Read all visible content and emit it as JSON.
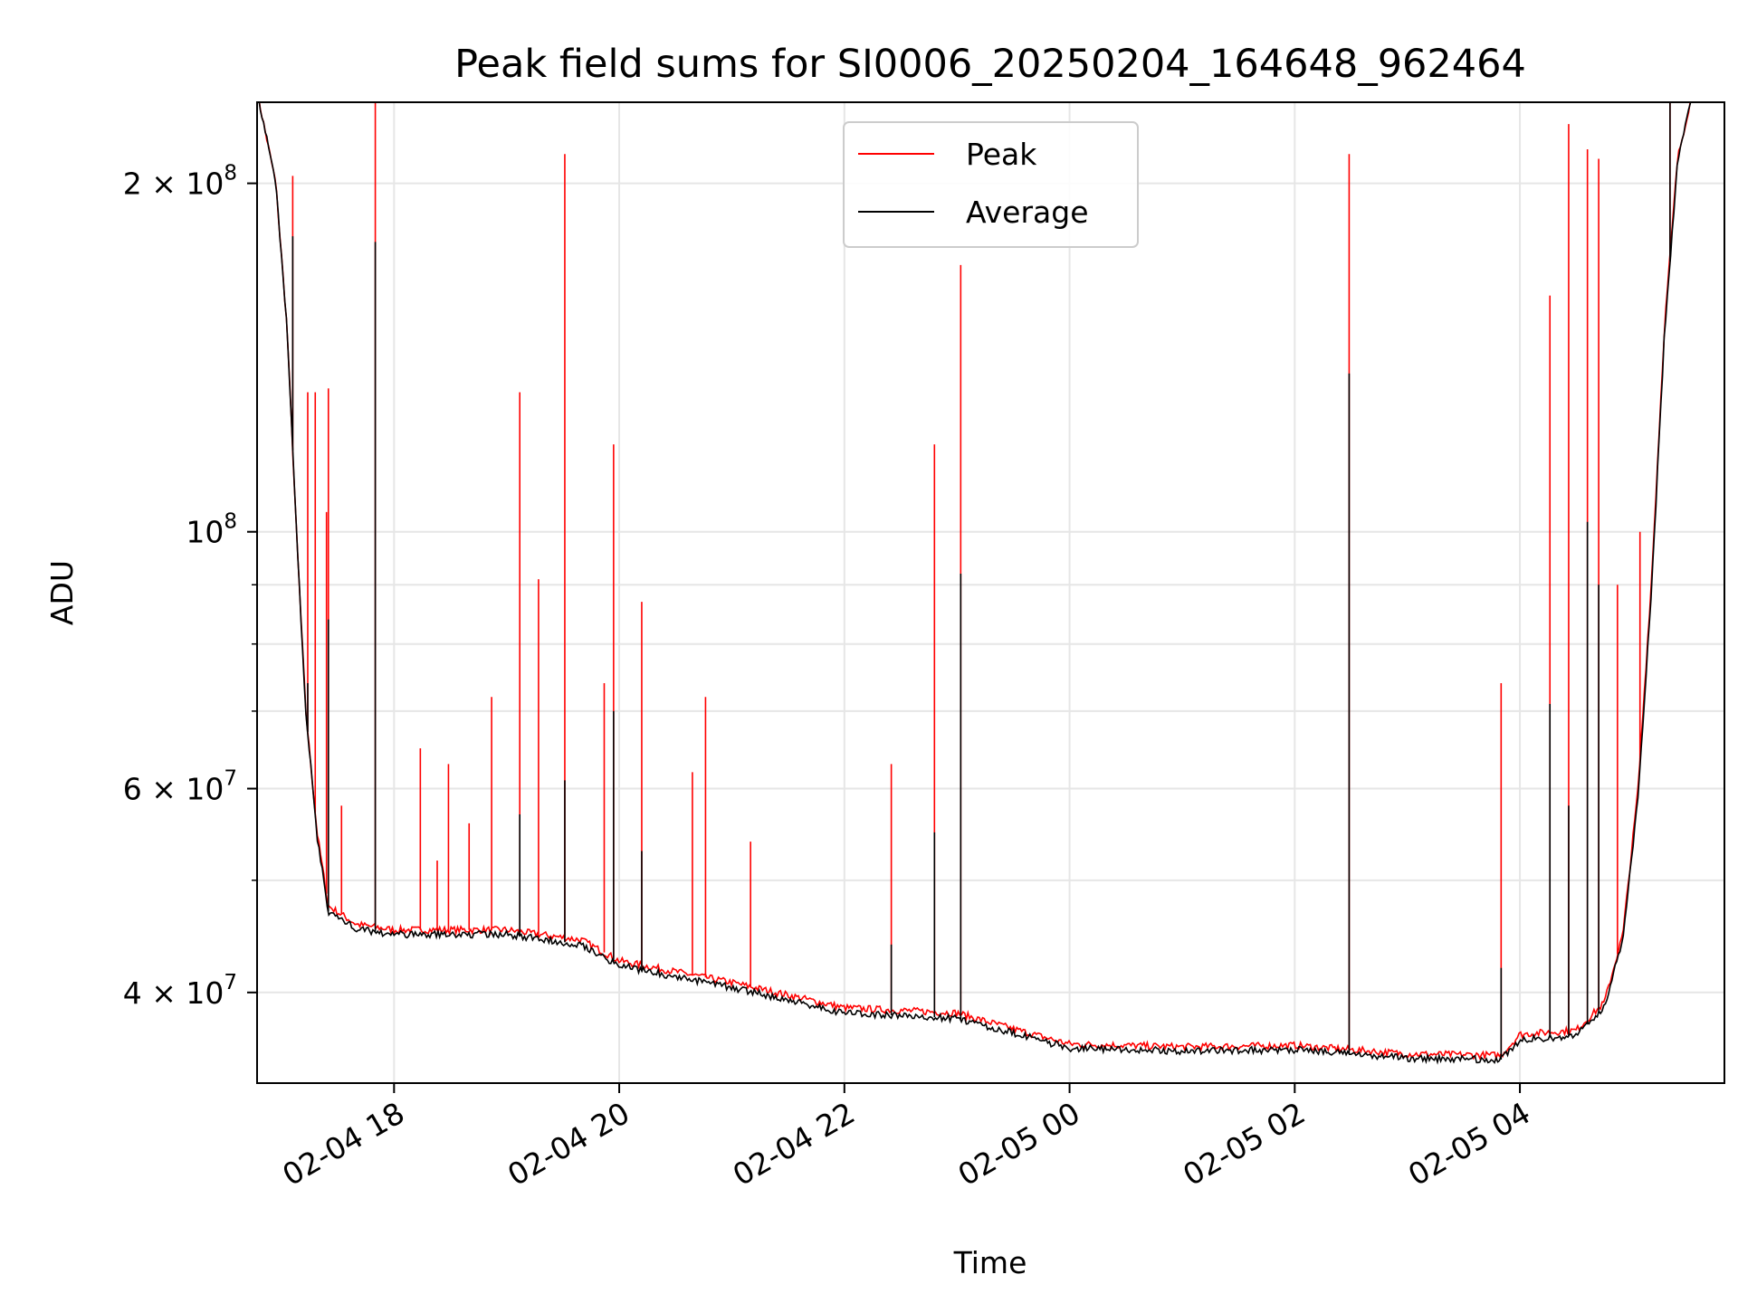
{
  "chart_data": {
    "type": "line",
    "title": "Peak field sums for SI0006_20250204_164648_962464",
    "xlabel": "Time",
    "ylabel": "ADU",
    "y_scale": "log",
    "ylim": [
      33400000,
      235000000
    ],
    "xlim": [
      "2025-02-04 16:47",
      "2025-02-05 05:49"
    ],
    "grid": true,
    "legend_position": "top-center",
    "x_ticks": [
      {
        "t": "2025-02-04 18:00",
        "label": "02-04 18"
      },
      {
        "t": "2025-02-04 20:00",
        "label": "02-04 20"
      },
      {
        "t": "2025-02-04 22:00",
        "label": "02-04 22"
      },
      {
        "t": "2025-02-05 00:00",
        "label": "02-05 00"
      },
      {
        "t": "2025-02-05 02:00",
        "label": "02-05 02"
      },
      {
        "t": "2025-02-05 04:00",
        "label": "02-05 04"
      }
    ],
    "y_ticks": [
      {
        "v": 40000000,
        "base": "4",
        "exp": "7"
      },
      {
        "v": 60000000,
        "base": "6",
        "exp": "7"
      },
      {
        "v": 100000000,
        "base": "",
        "exp": "8"
      },
      {
        "v": 200000000,
        "base": "2",
        "exp": "8"
      }
    ],
    "y_minor_ticks": [
      50000000,
      70000000,
      80000000,
      90000000
    ],
    "series": [
      {
        "name": "Peak",
        "color": "#ff0000",
        "baseline": [
          [
            "2025-02-04 16:47",
            240000000
          ],
          [
            "2025-02-04 16:57",
            200000000
          ],
          [
            "2025-02-04 17:03",
            150000000
          ],
          [
            "2025-02-04 17:08",
            100000000
          ],
          [
            "2025-02-04 17:13",
            70000000
          ],
          [
            "2025-02-04 17:19",
            55000000
          ],
          [
            "2025-02-04 17:25",
            47500000
          ],
          [
            "2025-02-04 17:40",
            45800000
          ],
          [
            "2025-02-04 18:00",
            45300000
          ],
          [
            "2025-02-04 19:00",
            45300000
          ],
          [
            "2025-02-04 19:40",
            44400000
          ],
          [
            "2025-02-04 20:00",
            42600000
          ],
          [
            "2025-02-04 21:00",
            40800000
          ],
          [
            "2025-02-04 22:00",
            38800000
          ],
          [
            "2025-02-04 23:00",
            38400000
          ],
          [
            "2025-02-04 23:30",
            37200000
          ],
          [
            "2025-02-05 00:00",
            36100000
          ],
          [
            "2025-02-05 01:00",
            35900000
          ],
          [
            "2025-02-05 02:00",
            36000000
          ],
          [
            "2025-02-05 03:00",
            35400000
          ],
          [
            "2025-02-05 03:50",
            35300000
          ],
          [
            "2025-02-05 04:00",
            36800000
          ],
          [
            "2025-02-05 04:30",
            37100000
          ],
          [
            "2025-02-05 04:45",
            39200000
          ],
          [
            "2025-02-05 04:55",
            45000000
          ],
          [
            "2025-02-05 05:03",
            60000000
          ],
          [
            "2025-02-05 05:10",
            90000000
          ],
          [
            "2025-02-05 05:17",
            150000000
          ],
          [
            "2025-02-05 05:24",
            210000000
          ],
          [
            "2025-02-05 05:32",
            240000000
          ],
          [
            "2025-02-05 05:49",
            240000000
          ]
        ],
        "spikes": [
          [
            "2025-02-04 17:06",
            203000000
          ],
          [
            "2025-02-04 17:14",
            132000000
          ],
          [
            "2025-02-04 17:18",
            132000000
          ],
          [
            "2025-02-04 17:24",
            104000000
          ],
          [
            "2025-02-04 17:25",
            133000000
          ],
          [
            "2025-02-04 17:32",
            58000000
          ],
          [
            "2025-02-04 17:50",
            240000000
          ],
          [
            "2025-02-04 18:14",
            65000000
          ],
          [
            "2025-02-04 18:23",
            52000000
          ],
          [
            "2025-02-04 18:29",
            63000000
          ],
          [
            "2025-02-04 18:40",
            56000000
          ],
          [
            "2025-02-04 18:52",
            72000000
          ],
          [
            "2025-02-04 19:07",
            132000000
          ],
          [
            "2025-02-04 19:17",
            91000000
          ],
          [
            "2025-02-04 19:31",
            212000000
          ],
          [
            "2025-02-04 19:52",
            74000000
          ],
          [
            "2025-02-04 19:57",
            119000000
          ],
          [
            "2025-02-04 20:12",
            87000000
          ],
          [
            "2025-02-04 20:39",
            62000000
          ],
          [
            "2025-02-04 20:46",
            72000000
          ],
          [
            "2025-02-04 21:10",
            54000000
          ],
          [
            "2025-02-04 22:25",
            63000000
          ],
          [
            "2025-02-04 22:48",
            119000000
          ],
          [
            "2025-02-04 23:02",
            170000000
          ],
          [
            "2025-02-05 02:29",
            212000000
          ],
          [
            "2025-02-05 03:50",
            74000000
          ],
          [
            "2025-02-05 04:16",
            160000000
          ],
          [
            "2025-02-05 04:26",
            225000000
          ],
          [
            "2025-02-05 04:36",
            214000000
          ],
          [
            "2025-02-05 04:42",
            210000000
          ],
          [
            "2025-02-05 04:52",
            90000000
          ],
          [
            "2025-02-05 05:04",
            100000000
          ],
          [
            "2025-02-05 05:20",
            240000000
          ]
        ]
      },
      {
        "name": "Average",
        "color": "#000000",
        "baseline": [
          [
            "2025-02-04 16:47",
            240000000
          ],
          [
            "2025-02-04 16:57",
            200000000
          ],
          [
            "2025-02-04 17:03",
            150000000
          ],
          [
            "2025-02-04 17:08",
            100000000
          ],
          [
            "2025-02-04 17:13",
            70000000
          ],
          [
            "2025-02-04 17:19",
            54500000
          ],
          [
            "2025-02-04 17:25",
            47000000
          ],
          [
            "2025-02-04 17:40",
            45400000
          ],
          [
            "2025-02-04 18:00",
            44900000
          ],
          [
            "2025-02-04 19:00",
            44900000
          ],
          [
            "2025-02-04 19:40",
            44000000
          ],
          [
            "2025-02-04 20:00",
            42200000
          ],
          [
            "2025-02-04 21:00",
            40400000
          ],
          [
            "2025-02-04 22:00",
            38400000
          ],
          [
            "2025-02-04 23:00",
            38000000
          ],
          [
            "2025-02-04 23:30",
            36900000
          ],
          [
            "2025-02-05 00:00",
            35800000
          ],
          [
            "2025-02-05 01:00",
            35600000
          ],
          [
            "2025-02-05 02:00",
            35700000
          ],
          [
            "2025-02-05 03:00",
            35100000
          ],
          [
            "2025-02-05 03:50",
            35000000
          ],
          [
            "2025-02-05 04:00",
            36400000
          ],
          [
            "2025-02-05 04:30",
            36700000
          ],
          [
            "2025-02-05 04:45",
            38800000
          ],
          [
            "2025-02-05 04:55",
            44500000
          ],
          [
            "2025-02-05 05:03",
            59000000
          ],
          [
            "2025-02-05 05:10",
            88000000
          ],
          [
            "2025-02-05 05:17",
            148000000
          ],
          [
            "2025-02-05 05:24",
            208000000
          ],
          [
            "2025-02-05 05:32",
            240000000
          ],
          [
            "2025-02-05 05:49",
            240000000
          ]
        ],
        "spikes": [
          [
            "2025-02-04 17:06",
            180000000
          ],
          [
            "2025-02-04 17:14",
            74000000
          ],
          [
            "2025-02-04 17:25",
            84000000
          ],
          [
            "2025-02-04 17:50",
            178000000
          ],
          [
            "2025-02-04 19:07",
            57000000
          ],
          [
            "2025-02-04 19:31",
            61000000
          ],
          [
            "2025-02-04 19:57",
            70000000
          ],
          [
            "2025-02-04 20:12",
            53000000
          ],
          [
            "2025-02-04 22:25",
            44000000
          ],
          [
            "2025-02-04 22:48",
            55000000
          ],
          [
            "2025-02-04 23:02",
            92000000
          ],
          [
            "2025-02-05 02:29",
            137000000
          ],
          [
            "2025-02-05 03:50",
            42000000
          ],
          [
            "2025-02-05 04:16",
            71000000
          ],
          [
            "2025-02-05 04:26",
            58000000
          ],
          [
            "2025-02-05 04:36",
            102000000
          ],
          [
            "2025-02-05 04:42",
            90000000
          ],
          [
            "2025-02-05 05:20",
            240000000
          ]
        ]
      }
    ]
  }
}
